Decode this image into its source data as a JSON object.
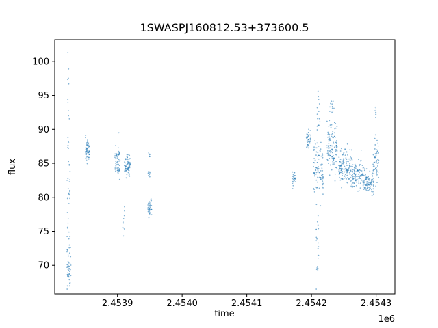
{
  "chart_data": {
    "type": "scatter",
    "title": "1SWASPJ160812.53+373600.5",
    "xlabel": "time",
    "ylabel": "flux",
    "x_offset_text": "1e6",
    "grid": false,
    "legend": "none",
    "marker": {
      "color": "#1f77b4",
      "opacity": 0.55,
      "radius": 0.9
    },
    "x_range": [
      2453803,
      2454329
    ],
    "y_range": [
      65.8,
      103.2
    ],
    "x_ticks": [
      {
        "value": 2453900,
        "label": "2.4539"
      },
      {
        "value": 2454000,
        "label": "2.4540"
      },
      {
        "value": 2454100,
        "label": "2.4541"
      },
      {
        "value": 2454200,
        "label": "2.4542"
      },
      {
        "value": 2454300,
        "label": "2.4543"
      }
    ],
    "y_ticks": [
      {
        "value": 70,
        "label": "70"
      },
      {
        "value": 75,
        "label": "75"
      },
      {
        "value": 80,
        "label": "80"
      },
      {
        "value": 85,
        "label": "85"
      },
      {
        "value": 90,
        "label": "90"
      },
      {
        "value": 95,
        "label": "95"
      },
      {
        "value": 100,
        "label": "100"
      }
    ],
    "series": [
      {
        "name": "flux",
        "clusters": [
          {
            "x0": 2453822,
            "x1": 2453828,
            "y_mean": 69.0,
            "y_sd": 1.1,
            "n": 40
          },
          {
            "x0": 2453822,
            "x1": 2453828,
            "y_mean": 72.5,
            "y_sd": 1.0,
            "n": 10
          },
          {
            "x0": 2453822,
            "x1": 2453827,
            "y_mean": 76.0,
            "y_sd": 1.2,
            "n": 8
          },
          {
            "x0": 2453822,
            "x1": 2453827,
            "y_mean": 80.3,
            "y_sd": 0.9,
            "n": 12
          },
          {
            "x0": 2453822,
            "x1": 2453827,
            "y_mean": 84.5,
            "y_sd": 1.5,
            "n": 8
          },
          {
            "x0": 2453823,
            "x1": 2453826,
            "y_mean": 89.0,
            "y_sd": 1.5,
            "n": 6
          },
          {
            "x0": 2453823,
            "x1": 2453826,
            "y_mean": 93.5,
            "y_sd": 1.5,
            "n": 5
          },
          {
            "x0": 2453823,
            "x1": 2453825,
            "y_mean": 98.5,
            "y_sd": 1.5,
            "n": 4
          },
          {
            "x0": 2453850,
            "x1": 2453857,
            "y_mean": 87.0,
            "y_sd": 0.9,
            "n": 60
          },
          {
            "x0": 2453896,
            "x1": 2453904,
            "y_mean": 85.2,
            "y_sd": 1.1,
            "n": 55
          },
          {
            "x0": 2453908,
            "x1": 2453911,
            "y_mean": 76.5,
            "y_sd": 1.3,
            "n": 10
          },
          {
            "x0": 2453911,
            "x1": 2453920,
            "y_mean": 84.8,
            "y_sd": 0.8,
            "n": 70
          },
          {
            "x0": 2453947,
            "x1": 2453953,
            "y_mean": 78.5,
            "y_sd": 0.8,
            "n": 40
          },
          {
            "x0": 2453947,
            "x1": 2453952,
            "y_mean": 83.6,
            "y_sd": 0.4,
            "n": 10
          },
          {
            "x0": 2453948,
            "x1": 2453951,
            "y_mean": 86.3,
            "y_sd": 0.3,
            "n": 6
          },
          {
            "x0": 2454170,
            "x1": 2454175,
            "y_mean": 82.7,
            "y_sd": 0.6,
            "n": 25
          },
          {
            "x0": 2454192,
            "x1": 2454199,
            "y_mean": 88.7,
            "y_sd": 0.7,
            "n": 45
          },
          {
            "x0": 2454203,
            "x1": 2454218,
            "y_mean": 84.0,
            "y_sd": 1.8,
            "n": 90
          },
          {
            "x0": 2454207,
            "x1": 2454211,
            "y_mean": 72.5,
            "y_sd": 3.0,
            "n": 22
          },
          {
            "x0": 2454208,
            "x1": 2454213,
            "y_mean": 91.5,
            "y_sd": 2.2,
            "n": 16
          },
          {
            "x0": 2454224,
            "x1": 2454240,
            "y_mean": 87.3,
            "y_sd": 1.8,
            "n": 120
          },
          {
            "x0": 2454228,
            "x1": 2454236,
            "y_mean": 93.2,
            "y_sd": 1.3,
            "n": 12
          },
          {
            "x0": 2454242,
            "x1": 2454262,
            "y_mean": 84.4,
            "y_sd": 1.2,
            "n": 130
          },
          {
            "x0": 2454262,
            "x1": 2454280,
            "y_mean": 83.2,
            "y_sd": 1.1,
            "n": 110
          },
          {
            "x0": 2454280,
            "x1": 2454297,
            "y_mean": 82.3,
            "y_sd": 1.0,
            "n": 100
          },
          {
            "x0": 2454295,
            "x1": 2454304,
            "y_mean": 85.5,
            "y_sd": 1.4,
            "n": 55
          },
          {
            "x0": 2454297,
            "x1": 2454300,
            "y_mean": 92.5,
            "y_sd": 0.5,
            "n": 8
          }
        ]
      }
    ]
  }
}
